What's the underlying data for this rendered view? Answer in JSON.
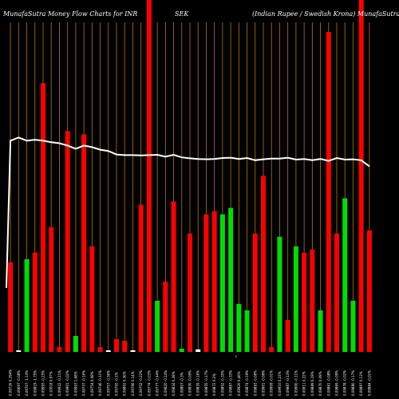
{
  "header": {
    "left": "MunafaSutra  Money Flow  Charts for INR",
    "mid": "SEK",
    "right": "(Indian  Rupee    / Swedish Krona)  MunafaSutra.com"
  },
  "colors": {
    "background": "#000000",
    "grid": "#b8741a",
    "up": "#00dd00",
    "down": "#ff0000",
    "line": "#ffffff"
  },
  "marker": "c",
  "chart_data": {
    "type": "bar",
    "title": "MunafaSutra  Money Flow  Charts for INR SEK (Indian  Rupee    / Swedish Krona)  MunafaSutra.com",
    "ylim": [
      0,
      100
    ],
    "grid": true,
    "categories": [
      "0.09726 0.294%",
      "0.09697 -0.08%",
      "0.09707 -1.14%",
      "0.09819 -1.75%",
      "0.09993 -0.25%",
      "0.10018 0.97%",
      "0.09922 -0.11%",
      "0.09901 -0.02%",
      "0.09903 1.68%",
      "0.09737 -0.16%",
      "0.09754 0.08%",
      "0.09746 -0.11%",
      "0.09757 -0.36%",
      "0.09792 -0.1%",
      "0.09802 0.36%",
      "0.09766 0.14%",
      "0.09752 -0.22%",
      "0.09774 -0.03%",
      "0.09777 -0.44%",
      "0.09820 -0.14%",
      "0.09834 0.28%",
      "0.09807 -0.3%",
      "0.09830 -0.09%",
      "0.09839 -0.16%",
      "0.09855 -0.17%",
      "0.09872 0.2%",
      "0.09852 -0.35%",
      "0.09887 -0.33%",
      "0.09920 0.46%",
      "0.09874 -0.19%",
      "0.09893 -0.08%",
      "0.09901 -0.08%",
      "0.09909 -0.01%",
      "0.09910 0.23%",
      "0.09887 -0.13%",
      "0.09900 -0.11%",
      "0.09911 0.22%",
      "0.09889 0.19%",
      "0.09870 0.09%",
      "0.09861 -0.08%",
      "0.09869 -0.09%",
      "0.09878 -0.02%",
      "0.09880 -0.17%",
      "0.09897 0.13%",
      "0.09884 -0.01%"
    ],
    "bar_colors": [
      "red",
      "green",
      "green",
      "red",
      "red",
      "red",
      "red",
      "red",
      "green",
      "red",
      "red",
      "red",
      "red",
      "red",
      "red",
      "green",
      "red",
      "red",
      "green",
      "red",
      "red",
      "green",
      "red",
      "red",
      "red",
      "red",
      "green",
      "green",
      "green",
      "green",
      "red",
      "red",
      "red",
      "green",
      "red",
      "green",
      "red",
      "red",
      "green",
      "red",
      "red",
      "green",
      "green",
      "red",
      "red"
    ],
    "values": [
      28,
      0.5,
      29,
      31,
      84,
      39,
      1.5,
      69,
      5,
      68,
      33,
      1.5,
      0.5,
      4,
      3.5,
      0.5,
      46,
      100,
      16,
      22,
      47,
      1,
      37,
      0.8,
      43,
      44,
      43,
      45,
      15,
      13,
      37,
      55,
      1.5,
      36,
      10,
      33,
      31,
      32,
      13,
      100,
      37,
      48,
      16,
      100,
      38
    ],
    "highlight": [
      false,
      false,
      false,
      false,
      false,
      false,
      false,
      false,
      false,
      false,
      false,
      false,
      false,
      false,
      false,
      false,
      false,
      true,
      false,
      false,
      false,
      false,
      false,
      false,
      false,
      false,
      false,
      false,
      false,
      false,
      false,
      false,
      false,
      false,
      false,
      false,
      false,
      false,
      false,
      false,
      false,
      false,
      false,
      true,
      false
    ],
    "line_values": [
      66,
      67,
      66,
      66.3,
      66,
      65.5,
      65.2,
      64.5,
      63.5,
      64.5,
      64,
      63.2,
      62.8,
      61.7,
      61.5,
      61.5,
      61.4,
      61.5,
      61.6,
      61,
      61.6,
      60.8,
      60.5,
      60.3,
      60.2,
      60.3,
      60.6,
      60.7,
      60.3,
      60.6,
      59.9,
      60.2,
      60.4,
      60.4,
      60.7,
      60.1,
      60.3,
      59.9,
      60.3,
      59.7,
      60.6,
      60.1,
      60.2,
      59.9,
      58
    ],
    "line_start": 20
  }
}
